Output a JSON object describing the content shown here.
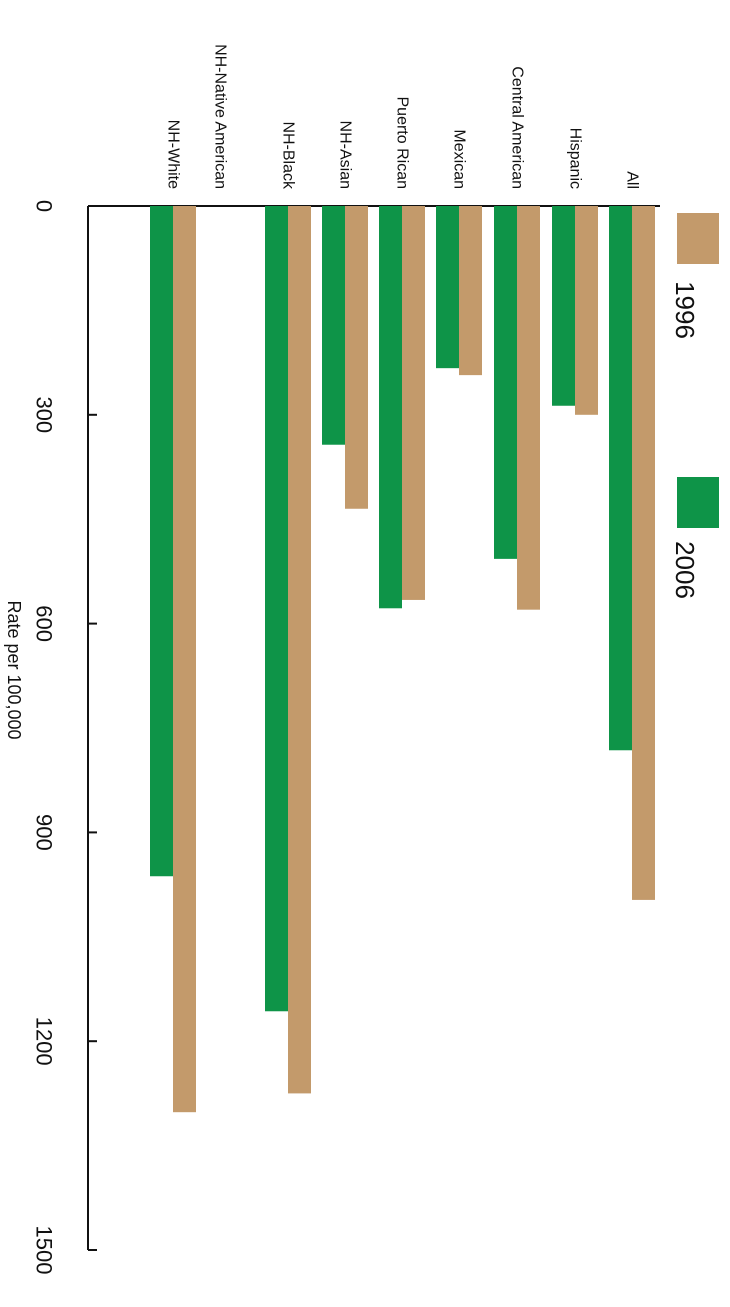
{
  "chart_data": {
    "type": "bar",
    "orientation": "horizontal-bars-rotated-90-clockwise",
    "categories": [
      "All",
      "Hispanic",
      "Central American",
      "Mexican",
      "Puerto Rican",
      "NH-Asian",
      "NH-Black",
      "NH-Native American",
      "NH-White"
    ],
    "series": [
      {
        "name": "2006",
        "color": "#0e9448",
        "values": [
          782,
          287,
          507,
          233,
          578,
          343,
          1157,
          0,
          963
        ]
      },
      {
        "name": "1996",
        "color": "#c39a6b",
        "values": [
          997,
          300,
          580,
          243,
          566,
          435,
          1275,
          0,
          1302
        ]
      }
    ],
    "xlabel": "",
    "ylabel": "Rate per 100,000",
    "ylim": [
      0,
      1500
    ],
    "yticks": [
      "0",
      "300",
      "600",
      "900",
      "1200",
      "1500"
    ],
    "grid": false,
    "legend": "top-right"
  }
}
